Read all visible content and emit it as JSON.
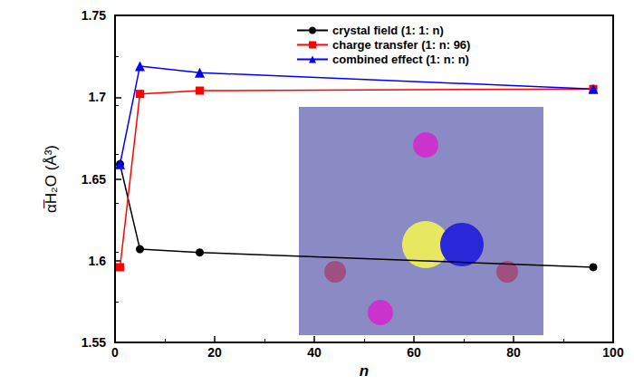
{
  "chart_data": {
    "type": "line",
    "x_label": "n",
    "y_label": "α̅H₂O (Å³)",
    "xlim": [
      0,
      100
    ],
    "xticks": [
      0,
      20,
      40,
      60,
      80,
      100
    ],
    "ylim": [
      1.55,
      1.75
    ],
    "yticks": [
      1.55,
      1.6,
      1.65,
      1.7,
      1.75
    ],
    "grid": false,
    "legend": "upper right",
    "series": [
      {
        "name": "crystal field (1: 1: n)",
        "color": "#000000",
        "marker": "circle",
        "line_style": "solid",
        "x": [
          1,
          5,
          17,
          96
        ],
        "values": [
          1.659,
          1.607,
          1.605,
          1.596
        ]
      },
      {
        "name": "charge transfer (1: n: 96)",
        "color": "#ff0000",
        "marker": "square",
        "line_style": "solid",
        "x": [
          1,
          5,
          17,
          96
        ],
        "values": [
          1.596,
          1.702,
          1.704,
          1.705
        ]
      },
      {
        "name": "combined effect (1: n: n)",
        "color": "#0000ff",
        "marker": "triangle",
        "line_style": "solid",
        "x": [
          1,
          5,
          17,
          96
        ],
        "values": [
          1.659,
          1.719,
          1.715,
          1.705
        ]
      }
    ]
  }
}
